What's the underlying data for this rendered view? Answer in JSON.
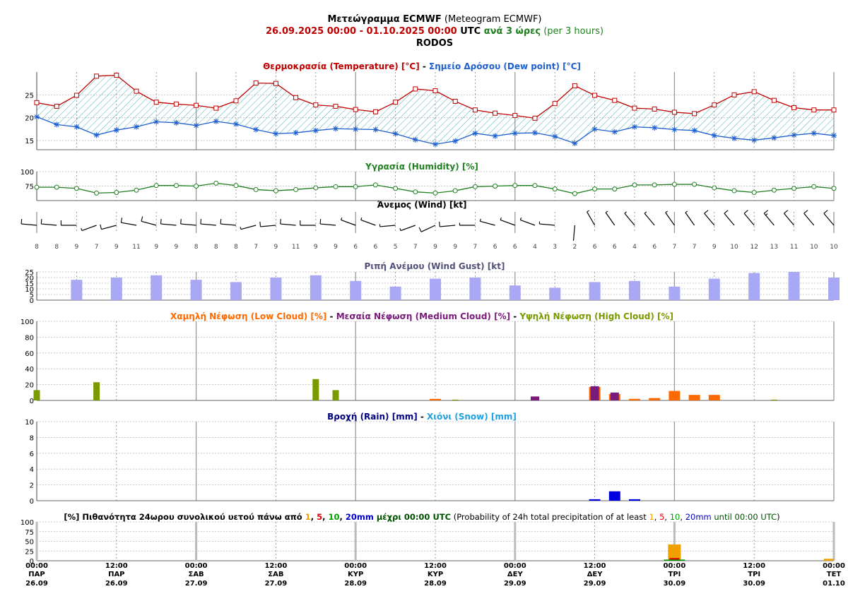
{
  "header": {
    "title_bold": "Μετεώγραμμα ECMWF",
    "title_rest": " (Meteogram ECMWF)",
    "range": "26.09.2025 00:00 - 01.10.2025 00:00",
    "utc": " UTC ",
    "step": "ανά 3 ώρες",
    "step_en": " (per 3 hours)",
    "location": "RODOS"
  },
  "colors": {
    "temp": "#c00000",
    "dew": "#1f5fd0",
    "hatch": "#1aa0a0",
    "humidity": "#208020",
    "gust_bar": "#a8a8f5",
    "gust_title": "#505078",
    "low": "#ff6a00",
    "medium": "#7a1a7a",
    "high": "#7a9a00",
    "rain": "#0000e0",
    "snow": "#20a0e0",
    "p1": "#f0a000",
    "p5": "#e00000",
    "p10": "#00a000",
    "p20": "#0000c0"
  },
  "chart_data": [
    {
      "type": "line",
      "title_temp": "Θερμοκρασία (Temperature) [°C]",
      "title_sep": " - ",
      "title_dew": "Σημείο Δρόσου (Dew point) [°C]",
      "x_step_hours": 3,
      "ylim": [
        13,
        30
      ],
      "yticks": [
        15,
        20,
        25
      ],
      "series": [
        {
          "name": "Temperature",
          "values": [
            23.3,
            22.5,
            24.9,
            29.1,
            29.3,
            25.8,
            23.4,
            23.0,
            22.7,
            22.1,
            23.7,
            27.6,
            27.5,
            24.4,
            22.8,
            22.5,
            21.8,
            21.3,
            23.4,
            26.3,
            25.9,
            23.6,
            21.7,
            21.0,
            20.5,
            19.9,
            23.1,
            27.0,
            24.9,
            23.8,
            22.1,
            21.9,
            21.2,
            20.9,
            22.8,
            25.0,
            25.7,
            23.8,
            22.2,
            21.7,
            21.7
          ]
        },
        {
          "name": "Dew point",
          "values": [
            20.2,
            18.5,
            18.0,
            16.2,
            17.3,
            18.0,
            19.1,
            18.9,
            18.3,
            19.2,
            18.6,
            17.4,
            16.5,
            16.7,
            17.2,
            17.6,
            17.5,
            17.4,
            16.5,
            15.2,
            14.2,
            14.9,
            16.6,
            16.0,
            16.6,
            16.7,
            15.9,
            14.4,
            17.5,
            16.9,
            18.0,
            17.8,
            17.4,
            17.2,
            16.1,
            15.5,
            15.1,
            15.6,
            16.2,
            16.6,
            16.1
          ]
        }
      ]
    },
    {
      "type": "line",
      "title": "Υγρασία (Humidity) [%]",
      "ylim": [
        50,
        100
      ],
      "yticks": [
        75,
        100
      ],
      "series": [
        {
          "name": "Humidity",
          "values": [
            73,
            73,
            71,
            63,
            64,
            68,
            76,
            76,
            75,
            80,
            76,
            69,
            67,
            69,
            72,
            74,
            74,
            77,
            71,
            65,
            63,
            67,
            74,
            75,
            76,
            76,
            70,
            62,
            70,
            70,
            77,
            77,
            78,
            78,
            72,
            67,
            64,
            68,
            71,
            74,
            71
          ]
        }
      ]
    },
    {
      "type": "wind",
      "title": "Άνεμος (Wind) [kt]",
      "speeds": [
        8,
        8,
        9,
        7,
        9,
        11,
        9,
        9,
        8,
        8,
        8,
        7,
        9,
        11,
        9,
        9,
        6,
        6,
        5,
        7,
        9,
        9,
        7,
        6,
        6,
        4,
        3,
        2,
        6,
        6,
        4,
        6,
        7,
        7,
        9,
        10,
        12,
        13,
        11,
        10,
        10
      ],
      "dir_deg": [
        275,
        275,
        270,
        250,
        255,
        280,
        285,
        275,
        275,
        275,
        275,
        255,
        265,
        275,
        270,
        275,
        290,
        290,
        265,
        250,
        245,
        265,
        270,
        285,
        290,
        290,
        275,
        185,
        330,
        325,
        320,
        320,
        325,
        325,
        320,
        320,
        320,
        320,
        320,
        320,
        320
      ]
    },
    {
      "type": "bar",
      "title": "Ριπή Ανέμου (Wind Gust) [kt]",
      "ylim": [
        0,
        25
      ],
      "yticks": [
        0,
        5,
        10,
        15,
        20,
        25
      ],
      "x_step_hours": 6,
      "x_start_hours": 6,
      "values": [
        18,
        20,
        22,
        18,
        16,
        20,
        22,
        17,
        12,
        19,
        20,
        13,
        11,
        16,
        17,
        12,
        19,
        24,
        25,
        20
      ]
    },
    {
      "type": "bar",
      "title_low": "Χαμηλή Νέφωση (Low Cloud) [%]",
      "title_medium": "Μεσαία Νέφωση (Medium Cloud) [%]",
      "title_high": "Υψηλή Νέφωση (High Cloud) [%]",
      "title_sep": " - ",
      "ylim": [
        0,
        100
      ],
      "yticks": [
        0,
        20,
        40,
        60,
        80,
        100
      ],
      "x_step_hours": 3,
      "series": [
        {
          "name": "Low",
          "values": [
            0,
            0,
            0,
            0,
            0,
            0,
            0,
            0,
            0,
            0,
            0,
            0,
            0,
            0,
            0,
            0,
            0,
            0,
            0,
            0,
            2,
            0,
            0,
            0,
            0,
            0,
            0,
            0,
            17,
            8,
            2,
            3,
            12,
            7,
            7,
            0,
            0,
            0,
            0,
            0,
            0
          ]
        },
        {
          "name": "Medium",
          "values": [
            0,
            0,
            0,
            0,
            0,
            0,
            0,
            0,
            0,
            0,
            0,
            0,
            0,
            0,
            0,
            0,
            0,
            0,
            0,
            0,
            0,
            0,
            0,
            0,
            0,
            5,
            0,
            0,
            18,
            10,
            0,
            0,
            0,
            0,
            0,
            0,
            0,
            0,
            0,
            0,
            0
          ]
        },
        {
          "name": "High",
          "values": [
            13,
            0,
            0,
            23,
            0,
            0,
            0,
            0,
            0,
            0,
            0,
            0,
            0,
            0,
            27,
            13,
            0,
            0,
            0,
            0,
            0,
            1,
            0,
            0,
            0,
            0,
            0,
            0,
            0,
            0,
            0,
            0,
            0,
            0,
            0,
            0,
            0,
            1,
            0,
            0,
            0
          ]
        }
      ]
    },
    {
      "type": "bar",
      "title_rain": "Βροχή (Rain) [mm]",
      "title_sep": " - ",
      "title_snow": "Χιόνι (Snow) [mm]",
      "ylim": [
        0,
        10
      ],
      "yticks": [
        0,
        2,
        4,
        6,
        8,
        10
      ],
      "x_step_hours": 3,
      "series": [
        {
          "name": "Rain",
          "values": [
            0,
            0,
            0,
            0,
            0,
            0,
            0,
            0,
            0,
            0,
            0,
            0,
            0,
            0,
            0,
            0,
            0,
            0,
            0,
            0,
            0,
            0,
            0,
            0,
            0,
            0,
            0,
            0,
            0.1,
            1.1,
            0.1,
            0,
            0,
            0,
            0,
            0,
            0,
            0,
            0,
            0,
            0
          ]
        },
        {
          "name": "Snow",
          "values": [
            0,
            0,
            0,
            0,
            0,
            0,
            0,
            0,
            0,
            0,
            0,
            0,
            0,
            0,
            0,
            0,
            0,
            0,
            0,
            0,
            0,
            0,
            0,
            0,
            0,
            0,
            0,
            0,
            0,
            0,
            0,
            0,
            0,
            0,
            0,
            0,
            0,
            0,
            0,
            0,
            0
          ]
        }
      ]
    },
    {
      "type": "bar",
      "title_a": "[%] Πιθανότητα 24ωρου συνολικού υετού πάνω από ",
      "t1": "1",
      "tc1": ", ",
      "t5": "5",
      "tc2": ", ",
      "t10": "10",
      "tc3": ", ",
      "t20": "20mm",
      "title_b": " μέχρι 00:00 UTC",
      "title_c": " (Probability of 24h total precipitation of at least ",
      "e1": "1",
      "ec1": ", ",
      "e5": "5",
      "ec2": ", ",
      "e10": "10",
      "ec3": ", ",
      "e20": "20mm",
      "e_until": " until 00:00 UTC",
      "e_end": ")",
      "ylim": [
        0,
        100
      ],
      "yticks": [
        0,
        25,
        50,
        75,
        100
      ],
      "x_hours": [
        0,
        24,
        48,
        72,
        96,
        120
      ],
      "series": [
        {
          "name": "1",
          "values": [
            0,
            0,
            0,
            0,
            42,
            5
          ]
        },
        {
          "name": "5",
          "values": [
            0,
            0,
            0,
            0,
            7,
            0
          ]
        },
        {
          "name": "10",
          "values": [
            0,
            0,
            0,
            0,
            3,
            0
          ]
        },
        {
          "name": "20",
          "values": [
            0,
            0,
            0,
            0,
            0,
            0
          ]
        }
      ]
    }
  ],
  "x_axis": {
    "ticks": [
      {
        "time": "00:00",
        "day": "ΠΑΡ",
        "date": "26.09"
      },
      {
        "time": "12:00",
        "day": "ΠΑΡ",
        "date": "26.09"
      },
      {
        "time": "00:00",
        "day": "ΣΑΒ",
        "date": "27.09"
      },
      {
        "time": "12:00",
        "day": "ΣΑΒ",
        "date": "27.09"
      },
      {
        "time": "00:00",
        "day": "ΚΥΡ",
        "date": "28.09"
      },
      {
        "time": "12:00",
        "day": "ΚΥΡ",
        "date": "28.09"
      },
      {
        "time": "00:00",
        "day": "ΔΕΥ",
        "date": "29.09"
      },
      {
        "time": "12:00",
        "day": "ΔΕΥ",
        "date": "29.09"
      },
      {
        "time": "00:00",
        "day": "ΤΡΙ",
        "date": "30.09"
      },
      {
        "time": "12:00",
        "day": "ΤΡΙ",
        "date": "30.09"
      },
      {
        "time": "00:00",
        "day": "ΤΕΤ",
        "date": "01.10"
      }
    ]
  }
}
